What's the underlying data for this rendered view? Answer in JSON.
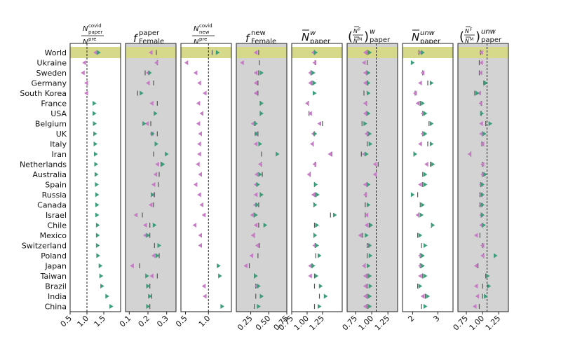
{
  "countries": [
    "World",
    "Ukraine",
    "Sweden",
    "Germany",
    "South Korea",
    "France",
    "USA",
    "Belgium",
    "UK",
    "Italy",
    "Iran",
    "Netherlands",
    "Australia",
    "Spain",
    "Russia",
    "Canada",
    "Israel",
    "Chile",
    "Mexico",
    "Switzerland",
    "Poland",
    "Japan",
    "Taiwan",
    "Brazil",
    "India",
    "China"
  ],
  "colors": {
    "female": "#c67bc5",
    "male": "#3c9d78",
    "highlight": "#d6d98a",
    "panel_bg": "#d3d3d3",
    "marker": "#555555"
  },
  "chart_data": [
    {
      "type": "scatter",
      "id": "p1",
      "title": "N_paper^covid / N_paper^pre",
      "shaded": false,
      "xlim": [
        0.5,
        2.0
      ],
      "xticks": [
        0.5,
        1.0,
        1.5
      ],
      "tick_labels": [
        "0.5",
        "1.0",
        "1.5"
      ],
      "ref_line": 1.0,
      "female": [
        1.25,
        0.92,
        0.88,
        0.98,
        0.98,
        null,
        null,
        null,
        null,
        null,
        null,
        null,
        null,
        null,
        null,
        null,
        null,
        null,
        null,
        null,
        null,
        null,
        null,
        null,
        null,
        null
      ],
      "male": [
        1.35,
        null,
        null,
        null,
        null,
        1.22,
        1.22,
        1.23,
        1.24,
        1.25,
        1.26,
        1.27,
        1.28,
        1.29,
        1.3,
        1.3,
        1.3,
        1.32,
        1.32,
        1.32,
        1.33,
        1.4,
        1.42,
        1.45,
        1.6,
        1.72
      ],
      "bar": [
        null,
        null,
        null,
        null,
        null,
        null,
        null,
        null,
        null,
        null,
        null,
        null,
        null,
        null,
        null,
        null,
        null,
        null,
        null,
        null,
        null,
        null,
        null,
        null,
        null,
        null
      ]
    },
    {
      "type": "scatter",
      "id": "p2",
      "title": "f_Female^paper",
      "shaded": true,
      "xlim": [
        0.08,
        0.35
      ],
      "xticks": [
        0.1,
        0.2,
        0.3
      ],
      "tick_labels": [
        "0.1",
        "0.2",
        "0.3"
      ],
      "ref_line": null,
      "female": [
        0.215,
        0.245,
        0.2,
        0.2,
        null,
        0.22,
        null,
        0.195,
        0.22,
        null,
        null,
        0.25,
        0.24,
        0.23,
        0.225,
        0.215,
        0.135,
        0.185,
        0.185,
        null,
        0.23,
        0.115,
        0.22,
        null,
        null,
        null
      ],
      "male": [
        null,
        null,
        0.21,
        null,
        0.165,
        null,
        0.24,
        0.18,
        0.225,
        0.245,
        0.3,
        0.28,
        null,
        null,
        0.225,
        null,
        null,
        0.235,
        0.2,
        0.26,
        0.25,
        null,
        0.195,
        0.2,
        0.21,
        0.2
      ],
      "bar": [
        0.245,
        0.25,
        0.185,
        0.23,
        0.145,
        0.25,
        null,
        0.215,
        0.25,
        null,
        0.23,
        0.27,
        0.26,
        0.255,
        0.235,
        0.23,
        0.17,
        0.21,
        0.21,
        0.235,
        0.26,
        0.155,
        0.25,
        0.21,
        0.22,
        0.21
      ]
    },
    {
      "type": "scatter",
      "id": "p3",
      "title": "N_new^covid / N_new^pre",
      "shaded": false,
      "xlim": [
        0.4,
        1.5
      ],
      "xticks": [
        0.5,
        1.0
      ],
      "tick_labels": [
        "0.5",
        "1.0"
      ],
      "ref_line": 1.0,
      "female": [
        null,
        0.52,
        0.72,
        0.8,
        0.92,
        0.78,
        0.85,
        0.78,
        0.82,
        0.8,
        0.8,
        0.77,
        0.82,
        0.72,
        0.8,
        0.85,
        0.9,
        0.7,
        0.82,
        0.82,
        null,
        null,
        null,
        0.9,
        0.92,
        null
      ],
      "male": [
        1.2,
        null,
        null,
        null,
        null,
        null,
        null,
        null,
        null,
        null,
        null,
        null,
        null,
        null,
        null,
        null,
        null,
        null,
        null,
        null,
        null,
        1.22,
        1.25,
        null,
        null,
        1.3
      ],
      "bar": [
        1.08,
        null,
        null,
        null,
        null,
        null,
        null,
        null,
        null,
        null,
        null,
        null,
        null,
        null,
        null,
        null,
        null,
        null,
        null,
        null,
        null,
        null,
        null,
        null,
        null,
        null
      ]
    },
    {
      "type": "scatter",
      "id": "p4",
      "title": "f_Female^new",
      "shaded": true,
      "xlim": [
        0.05,
        0.75
      ],
      "xticks": [
        0.25,
        0.5,
        0.75
      ],
      "tick_labels": [
        "0.25",
        "0.50",
        "0.75"
      ],
      "ref_line": null,
      "female": [
        0.32,
        0.13,
        0.32,
        0.32,
        0.32,
        null,
        null,
        0.28,
        0.32,
        0.32,
        null,
        0.38,
        0.33,
        0.32,
        0.32,
        0.31,
        0.27,
        0.32,
        0.28,
        0.34,
        0.26,
        0.18,
        null,
        0.33,
        null,
        null
      ],
      "male": [
        null,
        null,
        0.4,
        null,
        null,
        0.4,
        0.4,
        0.32,
        0.33,
        0.38,
        0.62,
        null,
        0.38,
        0.35,
        0.4,
        0.34,
        0.32,
        0.45,
        null,
        null,
        null,
        null,
        0.32,
        0.36,
        0.4,
        0.36
      ],
      "bar": [
        0.36,
        0.37,
        0.36,
        0.35,
        0.35,
        0.38,
        0.38,
        0.31,
        0.35,
        null,
        0.4,
        0.4,
        0.41,
        null,
        0.38,
        0.36,
        0.3,
        0.36,
        0.3,
        0.37,
        0.35,
        0.23,
        0.3,
        0.32,
        0.32,
        0.3
      ]
    },
    {
      "type": "scatter",
      "id": "p5",
      "title": "N̄_paper^w",
      "shaded": false,
      "xlim": [
        0.75,
        1.57
      ],
      "xticks": [
        0.75,
        1.0,
        1.25
      ],
      "tick_labels": [
        "0.75",
        "1.00",
        "1.25"
      ],
      "ref_line": null,
      "female": [
        1.1,
        1.12,
        1.05,
        1.05,
        null,
        1.0,
        1.05,
        1.2,
        1.1,
        1.08,
        1.37,
        1.12,
        1.03,
        null,
        1.1,
        null,
        null,
        null,
        null,
        1.12,
        null,
        1.05,
        1.05,
        null,
        null,
        null
      ],
      "male": [
        1.14,
        null,
        1.1,
        1.12,
        1.12,
        null,
        null,
        null,
        1.13,
        null,
        null,
        null,
        null,
        1.14,
        1.17,
        1.13,
        1.45,
        1.16,
        1.13,
        1.16,
        1.2,
        1.1,
        1.15,
        1.22,
        1.3,
        1.2
      ],
      "bar": [
        1.12,
        1.13,
        1.06,
        1.08,
        null,
        1.02,
        1.03,
        1.25,
        1.12,
        1.1,
        1.4,
        1.13,
        1.05,
        1.12,
        1.13,
        1.11,
        1.38,
        1.12,
        1.11,
        1.13,
        1.14,
        1.08,
        1.12,
        1.12,
        1.2,
        1.12
      ]
    },
    {
      "type": "scatter",
      "id": "p6",
      "title": "(N̄^F/N̄^M)_paper^w",
      "shaded": true,
      "xlim": [
        0.62,
        1.4
      ],
      "xticks": [
        0.75,
        1.0,
        1.25
      ],
      "tick_labels": [
        "0.75",
        "1.00",
        "1.25"
      ],
      "ref_line": 1.07,
      "female": [
        0.9,
        0.88,
        0.9,
        0.9,
        null,
        0.9,
        0.9,
        null,
        0.92,
        null,
        0.88,
        1.05,
        1.05,
        0.9,
        0.9,
        null,
        0.92,
        0.92,
        0.82,
        0.95,
        null,
        0.88,
        0.9,
        0.9,
        0.9,
        0.9
      ],
      "male": [
        0.97,
        null,
        0.95,
        0.95,
        0.95,
        null,
        0.95,
        0.9,
        0.97,
        0.98,
        0.92,
        null,
        null,
        0.95,
        null,
        0.95,
        null,
        0.99,
        0.92,
        0.97,
        0.98,
        0.95,
        0.97,
        0.98,
        0.97,
        0.97
      ],
      "bar": [
        0.93,
        0.93,
        0.92,
        0.94,
        0.88,
        0.92,
        0.92,
        0.85,
        0.93,
        0.93,
        0.84,
        1.1,
        1.07,
        0.93,
        0.91,
        0.9,
        0.9,
        0.96,
        0.86,
        0.93,
        0.93,
        0.9,
        0.93,
        0.93,
        0.93,
        0.93
      ]
    },
    {
      "type": "scatter",
      "id": "p7",
      "title": "N̄_paper^unw",
      "shaded": false,
      "xlim": [
        1.6,
        3.6
      ],
      "xticks": [
        2,
        3
      ],
      "tick_labels": [
        "2",
        "3"
      ],
      "ref_line": null,
      "female": [
        2.3,
        null,
        2.4,
        2.3,
        2.1,
        2.2,
        2.4,
        null,
        2.4,
        2.3,
        null,
        2.55,
        null,
        2.3,
        null,
        null,
        2.2,
        null,
        null,
        null,
        2.3,
        2.3,
        2.3,
        null,
        2.4,
        null
      ],
      "male": [
        2.4,
        2.0,
        null,
        2.75,
        null,
        2.4,
        2.5,
        2.75,
        2.5,
        2.75,
        2.1,
        2.8,
        2.5,
        2.5,
        2.0,
        2.4,
        2.35,
        2.8,
        2.3,
        2.5,
        2.4,
        2.4,
        2.5,
        2.3,
        2.6,
        2.5
      ],
      "bar": [
        2.25,
        null,
        2.4,
        2.6,
        2.1,
        2.3,
        2.4,
        2.65,
        2.4,
        2.6,
        2.05,
        2.7,
        2.4,
        2.4,
        2.2,
        2.3,
        2.25,
        2.75,
        2.2,
        2.35,
        2.3,
        2.3,
        2.4,
        2.2,
        2.5,
        2.35
      ]
    },
    {
      "type": "scatter",
      "id": "p8",
      "title": "(N̄^F/N̄^M)_paper^unw",
      "shaded": true,
      "xlim": [
        0.62,
        1.4
      ],
      "xticks": [
        0.75,
        1.0,
        1.25
      ],
      "tick_labels": [
        "0.75",
        "1.00",
        "1.25"
      ],
      "ref_line": 1.07,
      "female": [
        0.98,
        0.98,
        0.97,
        null,
        0.95,
        0.97,
        null,
        0.98,
        0.98,
        1.0,
        0.8,
        1.0,
        1.0,
        0.98,
        0.98,
        0.98,
        0.98,
        0.98,
        0.9,
        1.0,
        1.0,
        0.9,
        null,
        0.9,
        0.92,
        0.88
      ],
      "male": [
        null,
        null,
        null,
        1.05,
        0.92,
        null,
        0.99,
        1.12,
        1.03,
        null,
        null,
        null,
        1.04,
        1.0,
        1.0,
        1.0,
        1.0,
        1.02,
        null,
        null,
        1.2,
        null,
        1.08,
        1.1,
        1.05,
        null
      ],
      "bar": [
        0.97,
        0.95,
        0.95,
        1.02,
        0.88,
        0.98,
        0.98,
        1.05,
        1.0,
        0.99,
        0.82,
        1.0,
        1.0,
        0.97,
        0.96,
        0.96,
        0.98,
        1.0,
        0.96,
        1.0,
        1.02,
        0.93,
        1.05,
        1.0,
        1.0,
        0.95
      ]
    }
  ]
}
